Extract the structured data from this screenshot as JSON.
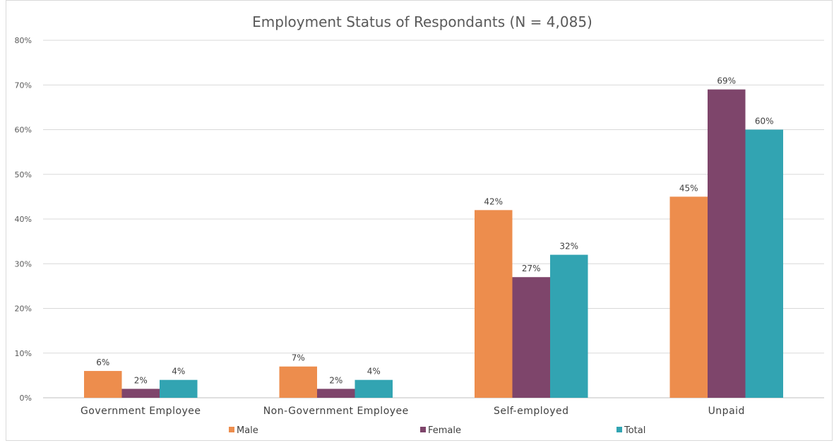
{
  "chart_data": {
    "type": "bar",
    "title": "Employment Status of Respondants (N = 4,085)",
    "categories": [
      "Government Employee",
      "Non-Government Employee",
      "Self-employed",
      "Unpaid"
    ],
    "series": [
      {
        "name": "Male",
        "color": "#ED8D4D",
        "values": [
          6,
          7,
          42,
          45
        ],
        "labels": [
          "6%",
          "7%",
          "42%",
          "45%"
        ]
      },
      {
        "name": "Female",
        "color": "#7E456B",
        "values": [
          2,
          2,
          27,
          69
        ],
        "labels": [
          "2%",
          "2%",
          "27%",
          "69%"
        ]
      },
      {
        "name": "Total",
        "color": "#32A4B2",
        "values": [
          4,
          4,
          32,
          60
        ],
        "labels": [
          "4%",
          "4%",
          "32%",
          "60%"
        ]
      }
    ],
    "ylim": [
      0,
      80
    ],
    "yticks": [
      "0%",
      "10%",
      "20%",
      "30%",
      "40%",
      "50%",
      "60%",
      "70%",
      "80%"
    ],
    "grid": true,
    "legend": "bottom",
    "xlabel": "",
    "ylabel": ""
  }
}
